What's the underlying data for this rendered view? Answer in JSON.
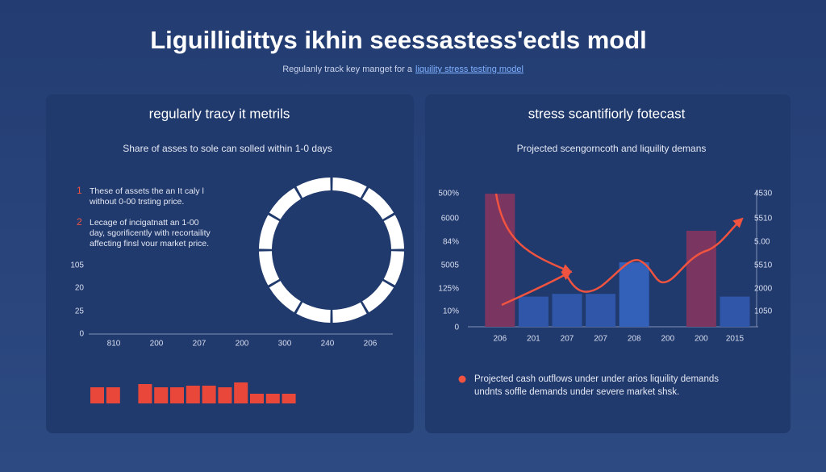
{
  "title": "Liguillidittys ikhin seessastess'ectls modl",
  "subtitle": "Regulanly track key manget for a",
  "subtitle_link": "liquility stress testing model",
  "left_panel": {
    "title": "regularly tracy it metrils",
    "subtitle": "Share of asses to sole can solled within 1-0 days",
    "notes": [
      {
        "number": "1",
        "lines": [
          "These of assets the an It caly l",
          "without 0-00 trsting price."
        ]
      },
      {
        "number": "2",
        "lines": [
          "Lecage of incigatnatt an 1-00",
          "day, sgorificently with recortaility",
          "affecting finsl vour market price."
        ]
      }
    ],
    "y_labels": [
      "105",
      "20",
      "25",
      "0"
    ],
    "x_labels": [
      "810",
      "200",
      "207",
      "200",
      "300",
      "240",
      "206"
    ],
    "bars": {
      "color": "#e8473a",
      "values": [
        20,
        20,
        null,
        24,
        20,
        20,
        22,
        22,
        20,
        26,
        12,
        12,
        12
      ]
    }
  },
  "right_panel": {
    "title": "stress scantifiorly fotecast",
    "subtitle": "Projected scengorncoth and liquility demans",
    "y_labels": [
      "500%",
      "6000",
      "84%",
      "5005",
      "125%",
      "10%",
      "0"
    ],
    "y2_labels": [
      "4530",
      "5510",
      "5.00",
      "5510",
      "2000",
      "1050"
    ],
    "x_labels": [
      "206",
      "201",
      "207",
      "207",
      "208",
      "200",
      "200",
      "2015"
    ],
    "bars": {
      "values": [
        97,
        22,
        24,
        24,
        47,
        null,
        70,
        22
      ],
      "colors": [
        "#7a3560",
        "#2f56a8",
        "#2f56a8",
        "#2f56a8",
        "#3360b8",
        null,
        "#7a3560",
        "#2f56a8"
      ]
    },
    "legend": [
      "Projected cash outflows under under arios liquility demands",
      "undnts soffle demands under severe market shsk."
    ]
  }
}
